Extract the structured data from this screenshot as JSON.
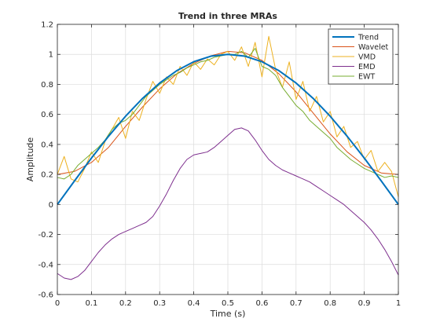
{
  "chart_data": {
    "type": "line",
    "title": "Trend in three MRAs",
    "xlabel": "Time (s)",
    "ylabel": "Amplitude",
    "xlim": [
      0,
      1
    ],
    "ylim": [
      -0.6,
      1.2
    ],
    "xticks": [
      0,
      0.1,
      0.2,
      0.3,
      0.4,
      0.5,
      0.6,
      0.7,
      0.8,
      0.9,
      1
    ],
    "yticks": [
      -0.6,
      -0.4,
      -0.2,
      0,
      0.2,
      0.4,
      0.6,
      0.8,
      1,
      1.2
    ],
    "grid": true,
    "legend_position": "top-right",
    "series": [
      {
        "name": "Trend",
        "color": "#0072bd",
        "x": [
          0,
          0.05,
          0.1,
          0.15,
          0.2,
          0.25,
          0.3,
          0.35,
          0.4,
          0.45,
          0.5,
          0.55,
          0.6,
          0.65,
          0.7,
          0.75,
          0.8,
          0.85,
          0.9,
          0.95,
          1
        ],
        "values": [
          0,
          0.156,
          0.309,
          0.454,
          0.588,
          0.707,
          0.809,
          0.891,
          0.951,
          0.988,
          1,
          0.988,
          0.951,
          0.891,
          0.809,
          0.707,
          0.588,
          0.454,
          0.309,
          0.156,
          0
        ]
      },
      {
        "name": "Wavelet",
        "color": "#d95319",
        "x": [
          0,
          0.05,
          0.1,
          0.15,
          0.2,
          0.25,
          0.3,
          0.35,
          0.4,
          0.45,
          0.5,
          0.55,
          0.6,
          0.65,
          0.7,
          0.75,
          0.8,
          0.85,
          0.9,
          0.95,
          1
        ],
        "values": [
          0.2,
          0.22,
          0.28,
          0.38,
          0.52,
          0.65,
          0.77,
          0.87,
          0.94,
          0.99,
          1.02,
          1.01,
          0.96,
          0.87,
          0.75,
          0.61,
          0.47,
          0.35,
          0.26,
          0.21,
          0.2
        ]
      },
      {
        "name": "VMD",
        "color": "#edb120",
        "x": [
          0,
          0.02,
          0.04,
          0.06,
          0.08,
          0.1,
          0.12,
          0.14,
          0.16,
          0.18,
          0.2,
          0.22,
          0.24,
          0.26,
          0.28,
          0.3,
          0.32,
          0.34,
          0.36,
          0.38,
          0.4,
          0.42,
          0.44,
          0.46,
          0.48,
          0.5,
          0.52,
          0.54,
          0.56,
          0.58,
          0.6,
          0.62,
          0.64,
          0.66,
          0.68,
          0.7,
          0.72,
          0.74,
          0.76,
          0.78,
          0.8,
          0.82,
          0.84,
          0.86,
          0.88,
          0.9,
          0.92,
          0.94,
          0.96,
          0.98,
          1
        ],
        "values": [
          0.2,
          0.32,
          0.17,
          0.15,
          0.24,
          0.35,
          0.28,
          0.42,
          0.5,
          0.58,
          0.44,
          0.62,
          0.56,
          0.7,
          0.82,
          0.74,
          0.85,
          0.8,
          0.92,
          0.86,
          0.95,
          0.9,
          0.97,
          0.93,
          1.0,
          1.02,
          0.96,
          1.05,
          0.92,
          1.08,
          0.85,
          1.12,
          0.9,
          0.78,
          0.95,
          0.7,
          0.82,
          0.62,
          0.72,
          0.55,
          0.62,
          0.45,
          0.52,
          0.38,
          0.42,
          0.3,
          0.36,
          0.22,
          0.28,
          0.22,
          0.05
        ]
      },
      {
        "name": "EMD",
        "color": "#7e2f8e",
        "x": [
          0,
          0.02,
          0.04,
          0.06,
          0.08,
          0.1,
          0.12,
          0.14,
          0.16,
          0.18,
          0.2,
          0.22,
          0.24,
          0.26,
          0.28,
          0.3,
          0.32,
          0.34,
          0.36,
          0.38,
          0.4,
          0.42,
          0.44,
          0.46,
          0.48,
          0.5,
          0.52,
          0.54,
          0.56,
          0.58,
          0.6,
          0.62,
          0.64,
          0.66,
          0.68,
          0.7,
          0.72,
          0.74,
          0.76,
          0.78,
          0.8,
          0.82,
          0.84,
          0.86,
          0.88,
          0.9,
          0.92,
          0.94,
          0.96,
          0.98,
          1
        ],
        "values": [
          -0.46,
          -0.49,
          -0.5,
          -0.48,
          -0.44,
          -0.38,
          -0.32,
          -0.27,
          -0.23,
          -0.2,
          -0.18,
          -0.16,
          -0.14,
          -0.12,
          -0.08,
          -0.01,
          0.07,
          0.16,
          0.24,
          0.3,
          0.33,
          0.34,
          0.35,
          0.38,
          0.42,
          0.46,
          0.5,
          0.51,
          0.49,
          0.43,
          0.36,
          0.3,
          0.26,
          0.23,
          0.21,
          0.19,
          0.17,
          0.15,
          0.12,
          0.09,
          0.06,
          0.03,
          0.0,
          -0.04,
          -0.08,
          -0.12,
          -0.17,
          -0.23,
          -0.3,
          -0.38,
          -0.47
        ]
      },
      {
        "name": "EWT",
        "color": "#77ac30",
        "x": [
          0,
          0.02,
          0.04,
          0.06,
          0.08,
          0.1,
          0.12,
          0.14,
          0.16,
          0.18,
          0.2,
          0.22,
          0.24,
          0.26,
          0.28,
          0.3,
          0.32,
          0.34,
          0.36,
          0.38,
          0.4,
          0.42,
          0.44,
          0.46,
          0.48,
          0.5,
          0.52,
          0.54,
          0.56,
          0.58,
          0.6,
          0.62,
          0.64,
          0.66,
          0.68,
          0.7,
          0.72,
          0.74,
          0.76,
          0.78,
          0.8,
          0.82,
          0.84,
          0.86,
          0.88,
          0.9,
          0.92,
          0.94,
          0.96,
          0.98,
          1
        ],
        "values": [
          0.18,
          0.17,
          0.2,
          0.26,
          0.3,
          0.34,
          0.38,
          0.43,
          0.5,
          0.54,
          0.56,
          0.6,
          0.66,
          0.72,
          0.76,
          0.8,
          0.83,
          0.86,
          0.88,
          0.91,
          0.93,
          0.95,
          0.96,
          0.98,
          0.99,
          1.0,
          1.0,
          1.02,
          0.98,
          1.04,
          0.92,
          0.9,
          0.86,
          0.78,
          0.72,
          0.66,
          0.62,
          0.56,
          0.52,
          0.48,
          0.44,
          0.38,
          0.34,
          0.3,
          0.27,
          0.24,
          0.22,
          0.2,
          0.18,
          0.19,
          0.18
        ]
      }
    ]
  }
}
